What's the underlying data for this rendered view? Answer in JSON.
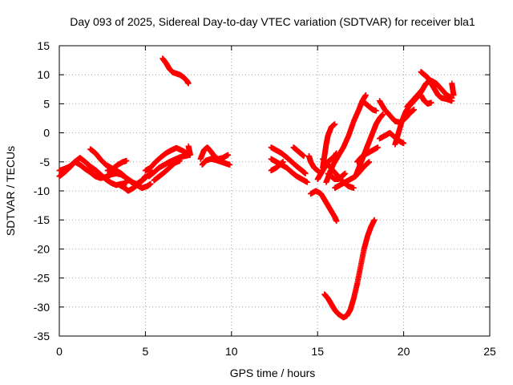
{
  "chart_data": {
    "type": "scatter",
    "title": "Day 093 of 2025, Sidereal Day-to-day VTEC variation (SDTVAR) for receiver bla1",
    "xlabel": "GPS time / hours",
    "ylabel": "SDTVAR / TECUs",
    "xlim": [
      0,
      25
    ],
    "ylim": [
      -35,
      15
    ],
    "xticks": [
      0,
      5,
      10,
      15,
      20,
      25
    ],
    "yticks": [
      -35,
      -30,
      -25,
      -20,
      -15,
      -10,
      -5,
      0,
      5,
      10,
      15
    ],
    "grid": true,
    "legend": "none",
    "marker": "plus",
    "color": "#ff0000",
    "tracks": [
      [
        [
          0.0,
          -7.5
        ],
        [
          0.3,
          -6.8
        ],
        [
          0.6,
          -6.0
        ],
        [
          0.9,
          -5.0
        ],
        [
          1.2,
          -4.3
        ],
        [
          1.5,
          -5.0
        ],
        [
          1.8,
          -5.8
        ],
        [
          2.1,
          -6.4
        ],
        [
          2.4,
          -7.2
        ],
        [
          2.7,
          -8.0
        ],
        [
          3.0,
          -8.6
        ],
        [
          3.3,
          -9.0
        ],
        [
          3.6,
          -8.8
        ],
        [
          3.9,
          -8.6
        ]
      ],
      [
        [
          0.0,
          -6.5
        ],
        [
          0.3,
          -6.2
        ],
        [
          0.6,
          -5.8
        ],
        [
          0.9,
          -5.0
        ],
        [
          1.2,
          -5.5
        ],
        [
          1.5,
          -6.2
        ],
        [
          1.8,
          -6.8
        ],
        [
          2.1,
          -7.5
        ],
        [
          2.4,
          -7.8
        ],
        [
          2.7,
          -7.6
        ],
        [
          3.0,
          -7.2
        ],
        [
          3.3,
          -7.0
        ],
        [
          3.6,
          -7.2
        ],
        [
          3.9,
          -7.8
        ],
        [
          4.2,
          -8.4
        ],
        [
          4.5,
          -9.0
        ],
        [
          4.8,
          -9.5
        ],
        [
          5.1,
          -9.2
        ],
        [
          5.3,
          -8.8
        ]
      ],
      [
        [
          1.8,
          -2.8
        ],
        [
          2.1,
          -3.5
        ],
        [
          2.4,
          -4.6
        ],
        [
          2.7,
          -5.5
        ],
        [
          3.0,
          -6.0
        ],
        [
          3.3,
          -6.5
        ],
        [
          3.6,
          -7.0
        ],
        [
          3.9,
          -7.8
        ],
        [
          4.2,
          -8.5
        ],
        [
          4.5,
          -8.8
        ],
        [
          4.8,
          -8.2
        ],
        [
          5.0,
          -7.5
        ]
      ],
      [
        [
          2.8,
          -6.5
        ],
        [
          3.1,
          -6.2
        ],
        [
          3.4,
          -5.5
        ],
        [
          3.7,
          -5.0
        ],
        [
          3.9,
          -4.8
        ]
      ],
      [
        [
          3.5,
          -9.0
        ],
        [
          3.8,
          -9.5
        ],
        [
          4.0,
          -10.0
        ],
        [
          4.3,
          -9.5
        ],
        [
          4.6,
          -8.8
        ],
        [
          4.9,
          -8.0
        ],
        [
          5.2,
          -7.2
        ],
        [
          5.4,
          -6.8
        ]
      ],
      [
        [
          5.0,
          -6.5
        ],
        [
          5.3,
          -6.0
        ],
        [
          5.6,
          -5.0
        ],
        [
          5.9,
          -4.2
        ],
        [
          6.2,
          -3.5
        ],
        [
          6.5,
          -3.0
        ],
        [
          6.8,
          -2.6
        ],
        [
          7.1,
          -3.0
        ],
        [
          7.4,
          -3.5
        ]
      ],
      [
        [
          5.2,
          -7.5
        ],
        [
          5.5,
          -6.8
        ],
        [
          5.8,
          -6.0
        ],
        [
          6.1,
          -5.5
        ],
        [
          6.4,
          -5.0
        ],
        [
          6.7,
          -4.6
        ],
        [
          7.0,
          -4.2
        ],
        [
          7.3,
          -4.0
        ],
        [
          7.6,
          -3.8
        ]
      ],
      [
        [
          5.5,
          -8.2
        ],
        [
          5.8,
          -7.5
        ],
        [
          6.1,
          -6.8
        ],
        [
          6.4,
          -6.0
        ],
        [
          6.7,
          -5.2
        ],
        [
          7.0,
          -4.8
        ]
      ],
      [
        [
          6.0,
          12.8
        ],
        [
          6.2,
          12.0
        ],
        [
          6.4,
          11.0
        ],
        [
          6.6,
          10.4
        ],
        [
          6.8,
          10.2
        ],
        [
          7.0,
          10.0
        ],
        [
          7.2,
          9.6
        ],
        [
          7.4,
          9.0
        ],
        [
          7.5,
          8.5
        ]
      ],
      [
        [
          7.5,
          -2.3
        ],
        [
          7.6,
          -3.7
        ]
      ],
      [
        [
          8.2,
          -4.5
        ],
        [
          8.4,
          -3.0
        ],
        [
          8.6,
          -2.5
        ],
        [
          8.8,
          -3.2
        ],
        [
          9.0,
          -4.0
        ],
        [
          9.2,
          -4.5
        ],
        [
          9.5,
          -4.3
        ],
        [
          9.8,
          -3.8
        ]
      ],
      [
        [
          8.3,
          -5.5
        ],
        [
          8.5,
          -4.8
        ],
        [
          8.8,
          -4.5
        ],
        [
          9.1,
          -4.7
        ],
        [
          9.4,
          -5.0
        ],
        [
          9.7,
          -5.3
        ],
        [
          9.9,
          -5.5
        ]
      ],
      [
        [
          12.3,
          -2.5
        ],
        [
          12.6,
          -3.0
        ],
        [
          12.9,
          -3.5
        ],
        [
          13.2,
          -4.2
        ],
        [
          13.5,
          -5.0
        ],
        [
          13.8,
          -5.8
        ],
        [
          14.1,
          -6.5
        ],
        [
          14.3,
          -7.0
        ]
      ],
      [
        [
          12.3,
          -4.5
        ],
        [
          12.6,
          -5.0
        ],
        [
          12.9,
          -5.5
        ],
        [
          13.2,
          -6.0
        ],
        [
          13.5,
          -6.8
        ],
        [
          13.8,
          -7.5
        ],
        [
          14.1,
          -8.0
        ],
        [
          14.4,
          -8.5
        ]
      ],
      [
        [
          12.3,
          -6.5
        ],
        [
          12.6,
          -6.0
        ],
        [
          12.8,
          -5.5
        ],
        [
          13.0,
          -5.0
        ]
      ],
      [
        [
          13.6,
          -2.5
        ],
        [
          13.8,
          -3.0
        ],
        [
          14.0,
          -3.5
        ],
        [
          14.2,
          -4.0
        ]
      ],
      [
        [
          14.5,
          -4.0
        ],
        [
          14.6,
          -5.0
        ],
        [
          14.8,
          -6.0
        ],
        [
          15.0,
          -6.5
        ],
        [
          15.2,
          -7.0
        ]
      ],
      [
        [
          14.6,
          -10.5
        ],
        [
          14.9,
          -10.0
        ],
        [
          15.2,
          -10.5
        ],
        [
          15.4,
          -11.5
        ],
        [
          15.6,
          -12.5
        ],
        [
          15.8,
          -13.5
        ],
        [
          16.0,
          -14.5
        ],
        [
          16.1,
          -15.2
        ]
      ],
      [
        [
          15.0,
          -8.0
        ],
        [
          15.2,
          -7.0
        ],
        [
          15.4,
          -6.0
        ],
        [
          15.6,
          -5.0
        ],
        [
          15.8,
          -4.5
        ],
        [
          16.0,
          -4.0
        ],
        [
          16.1,
          -3.5
        ]
      ],
      [
        [
          15.3,
          -4.5
        ],
        [
          15.6,
          -5.5
        ],
        [
          15.9,
          -6.5
        ],
        [
          16.2,
          -7.5
        ],
        [
          16.5,
          -8.5
        ],
        [
          16.8,
          -9.2
        ],
        [
          17.1,
          -9.5
        ]
      ],
      [
        [
          15.3,
          -6.0
        ],
        [
          15.4,
          -4.0
        ],
        [
          15.5,
          -2.0
        ],
        [
          15.6,
          -0.5
        ],
        [
          15.8,
          1.0
        ],
        [
          16.0,
          1.5
        ]
      ],
      [
        [
          15.5,
          -8.5
        ],
        [
          15.7,
          -7.0
        ],
        [
          15.9,
          -5.5
        ],
        [
          16.2,
          -4.0
        ],
        [
          16.5,
          -2.5
        ],
        [
          16.8,
          -0.5
        ],
        [
          17.1,
          2.0
        ],
        [
          17.4,
          4.0
        ],
        [
          17.6,
          5.5
        ],
        [
          17.8,
          6.5
        ]
      ],
      [
        [
          15.6,
          -7.0
        ],
        [
          15.8,
          -7.5
        ],
        [
          16.0,
          -8.0
        ],
        [
          16.2,
          -8.0
        ],
        [
          16.4,
          -7.5
        ],
        [
          16.6,
          -7.0
        ]
      ],
      [
        [
          16.0,
          -9.5
        ],
        [
          16.3,
          -9.0
        ],
        [
          16.6,
          -8.5
        ],
        [
          16.9,
          -8.0
        ],
        [
          17.2,
          -7.5
        ],
        [
          17.5,
          -6.5
        ],
        [
          17.8,
          -5.5
        ],
        [
          18.0,
          -5.0
        ]
      ],
      [
        [
          15.4,
          -27.8
        ],
        [
          15.6,
          -28.5
        ],
        [
          15.8,
          -29.5
        ],
        [
          16.0,
          -30.5
        ],
        [
          16.2,
          -31.2
        ],
        [
          16.5,
          -31.8
        ],
        [
          16.7,
          -31.5
        ],
        [
          16.9,
          -30.5
        ],
        [
          17.1,
          -28.5
        ],
        [
          17.3,
          -26.0
        ],
        [
          17.5,
          -23.0
        ],
        [
          17.7,
          -20.0
        ],
        [
          17.9,
          -17.8
        ],
        [
          18.1,
          -16.2
        ],
        [
          18.3,
          -15.0
        ]
      ],
      [
        [
          17.2,
          -7.5
        ],
        [
          17.4,
          -6.0
        ],
        [
          17.6,
          -4.5
        ],
        [
          17.8,
          -3.0
        ],
        [
          18.0,
          -1.5
        ],
        [
          18.2,
          0.0
        ],
        [
          18.4,
          1.5
        ],
        [
          18.6,
          2.5
        ],
        [
          18.8,
          3.2
        ]
      ],
      [
        [
          17.3,
          -5.0
        ],
        [
          17.6,
          -4.0
        ],
        [
          17.9,
          -3.5
        ],
        [
          18.2,
          -3.0
        ],
        [
          18.5,
          -2.5
        ]
      ],
      [
        [
          17.6,
          5.5
        ],
        [
          17.8,
          5.0
        ],
        [
          18.0,
          4.5
        ],
        [
          18.2,
          4.0
        ],
        [
          18.4,
          3.8
        ]
      ],
      [
        [
          18.6,
          5.5
        ],
        [
          18.9,
          4.0
        ],
        [
          19.2,
          3.0
        ],
        [
          19.5,
          2.0
        ],
        [
          19.8,
          1.8
        ],
        [
          20.1,
          2.5
        ],
        [
          20.4,
          3.5
        ],
        [
          20.6,
          4.0
        ]
      ],
      [
        [
          18.6,
          -1.0
        ],
        [
          18.9,
          -0.5
        ],
        [
          19.2,
          0.0
        ],
        [
          19.5,
          -0.8
        ],
        [
          19.8,
          -1.5
        ],
        [
          20.0,
          -1.8
        ]
      ],
      [
        [
          19.5,
          -2.0
        ],
        [
          19.7,
          0.0
        ],
        [
          19.9,
          2.0
        ],
        [
          20.1,
          3.5
        ],
        [
          20.3,
          4.5
        ],
        [
          20.6,
          5.5
        ],
        [
          20.9,
          6.5
        ],
        [
          21.1,
          7.5
        ]
      ],
      [
        [
          20.2,
          4.5
        ],
        [
          20.5,
          5.5
        ],
        [
          20.8,
          6.5
        ],
        [
          21.1,
          7.5
        ],
        [
          21.3,
          8.5
        ],
        [
          21.6,
          9.0
        ],
        [
          21.9,
          8.5
        ],
        [
          22.2,
          7.5
        ],
        [
          22.5,
          6.5
        ],
        [
          22.8,
          6.0
        ]
      ],
      [
        [
          21.0,
          10.5
        ],
        [
          21.2,
          10.0
        ],
        [
          21.4,
          9.5
        ],
        [
          21.6,
          8.5
        ],
        [
          21.8,
          7.5
        ],
        [
          22.0,
          6.5
        ],
        [
          22.2,
          6.0
        ],
        [
          22.5,
          5.8
        ],
        [
          22.8,
          5.5
        ]
      ],
      [
        [
          21.0,
          6.5
        ],
        [
          21.2,
          5.5
        ],
        [
          21.4,
          5.0
        ],
        [
          21.6,
          5.2
        ]
      ],
      [
        [
          22.8,
          8.5
        ],
        [
          22.9,
          6.5
        ]
      ]
    ]
  }
}
